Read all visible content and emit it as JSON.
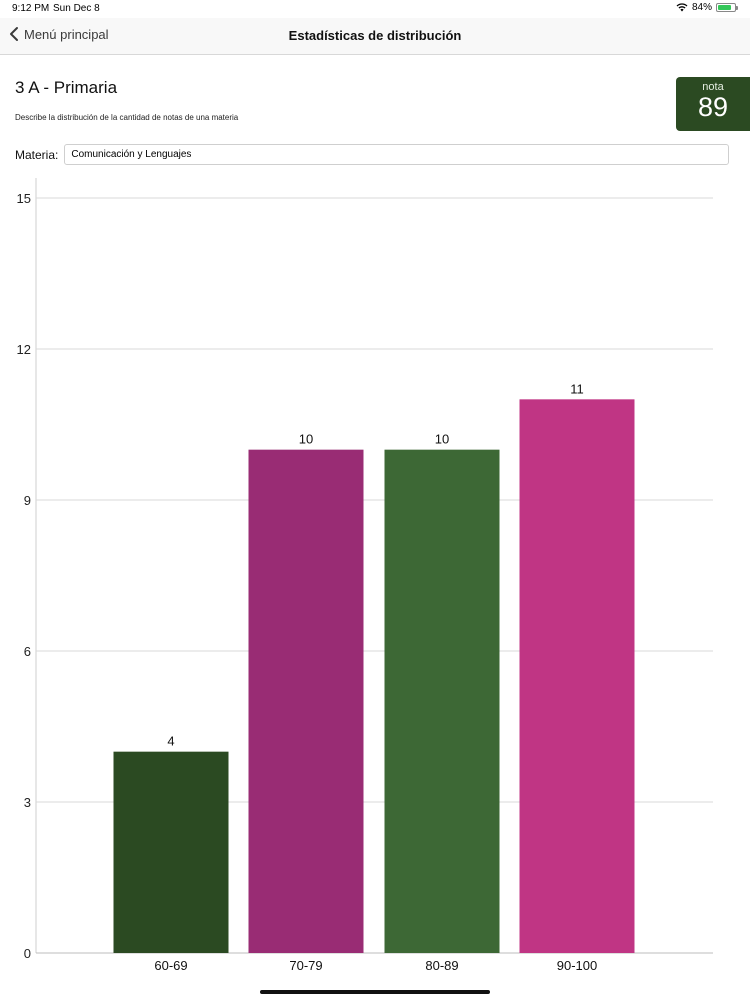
{
  "status": {
    "time": "9:12 PM",
    "date": "Sun Dec 8",
    "battery": "84%",
    "battery_level": 0.84
  },
  "nav": {
    "back_label": "Menú principal",
    "title": "Estadísticas de distribución"
  },
  "header": {
    "title": "3 A - Primaria",
    "description": "Describe la distribución de la cantidad de notas de una materia"
  },
  "grade": {
    "label": "nota",
    "value": "89"
  },
  "materia": {
    "label": "Materia:",
    "value": "Comunicación y Lenguajes"
  },
  "chart_data": {
    "type": "bar",
    "title": "",
    "xlabel": "",
    "ylabel": "",
    "categories": [
      "60-69",
      "70-79",
      "80-89",
      "90-100"
    ],
    "values": [
      4,
      10,
      10,
      11
    ],
    "colors": [
      "#2b4a22",
      "#992c74",
      "#3d6835",
      "#c03584"
    ],
    "ylim": [
      0,
      15
    ],
    "yticks": [
      0,
      3,
      6,
      9,
      12,
      15
    ],
    "grid": true
  }
}
